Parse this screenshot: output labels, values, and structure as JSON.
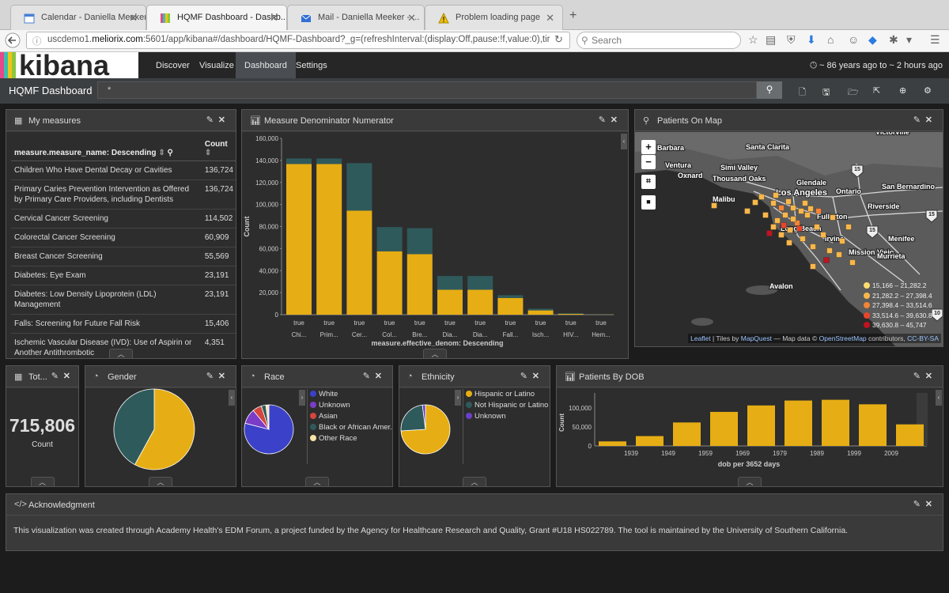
{
  "browser": {
    "tabs": [
      {
        "title": "Calendar - Daniella Meeker - ...",
        "icon": "calendar-icon"
      },
      {
        "title": "HQMF Dashboard - Dashb...",
        "icon": "kibana-icon",
        "active": true
      },
      {
        "title": "Mail - Daniella Meeker - ...",
        "icon": "mail-icon"
      },
      {
        "title": "Problem loading page",
        "icon": "warning-icon"
      }
    ],
    "url_prefix": "uscdemo1.",
    "url_domain": "meliorix.com",
    "url_rest": ":5601/app/kibana#/dashboard/HQMF-Dashboard?_g=(refreshInterval:(display:Off,pause:!f,value:0),tir",
    "search_placeholder": "Search"
  },
  "kibana": {
    "logo_text": "kibana",
    "nav": [
      "Discover",
      "Visualize",
      "Dashboard",
      "Settings"
    ],
    "active_nav": "Dashboard",
    "time_range": "~ 86 years ago to ~ 2 hours ago",
    "dashboard_title": "HQMF Dashboard",
    "query": "*"
  },
  "panels": {
    "my_measures": {
      "title": "My measures",
      "col_name": "measure.measure_name: Descending",
      "col_count": "Count",
      "rows": [
        {
          "name": "Children Who Have Dental Decay or Cavities",
          "count": "136,724"
        },
        {
          "name": "Primary Caries Prevention Intervention as Offered by Primary Care Providers, including Dentists",
          "count": "136,724"
        },
        {
          "name": "Cervical Cancer Screening",
          "count": "114,502"
        },
        {
          "name": "Colorectal Cancer Screening",
          "count": "60,909"
        },
        {
          "name": "Breast Cancer Screening",
          "count": "55,569"
        },
        {
          "name": "Diabetes: Eye Exam",
          "count": "23,191"
        },
        {
          "name": "Diabetes: Low Density Lipoprotein (LDL) Management",
          "count": "23,191"
        },
        {
          "name": "Falls: Screening for Future Fall Risk",
          "count": "15,406"
        },
        {
          "name": "Ischemic Vascular Disease (IVD): Use of Aspirin or Another Antithrombotic",
          "count": "4,351"
        }
      ]
    },
    "denom_numer": {
      "title": "Measure Denominator Numerator"
    },
    "map": {
      "title": "Patients On Map",
      "legend": [
        "15,166 – 21,282.2",
        "21,282.2 – 27,398.4",
        "27,398.4 – 33,514.6",
        "33,514.6 – 39,630.8",
        "39,630.8 – 45,747"
      ],
      "legend_colors": [
        "#fddc70",
        "#f9b74a",
        "#f48436",
        "#e8452b",
        "#c0131f"
      ],
      "cities": [
        "Santa Clarita",
        "Simi Valley",
        "Ventura",
        "Oxnard",
        "Thousand Oaks",
        "Glendale",
        "Los Angeles",
        "Ontario",
        "San Bernardino",
        "Malibu",
        "Fullerton",
        "Riverside",
        "Long Beach",
        "Irvine",
        "Menifee",
        "Mission Viejo",
        "Murrieta",
        "Avalon",
        "Barbara",
        "Victorville"
      ],
      "highways": [
        "15",
        "15",
        "15",
        "10"
      ],
      "attrib_leaflet": "Leaflet",
      "attrib_tiles": " | Tiles by ",
      "attrib_mapquest": "MapQuest",
      "attrib_data": " — Map data © ",
      "attrib_osm": "OpenStreetMap",
      "attrib_contrib": " contributors, ",
      "attrib_cc": "CC-BY-SA"
    },
    "total": {
      "title": "Tot...",
      "value": "715,806",
      "label": "Count"
    },
    "gender": {
      "title": "Gender"
    },
    "race": {
      "title": "Race",
      "legend": [
        "White",
        "Unknown",
        "Asian",
        "Black or African Amer...",
        "Other Race"
      ],
      "legend_colors": [
        "#3b41c8",
        "#7b3cc8",
        "#d4463e",
        "#2f5a5c",
        "#f7e4a6"
      ]
    },
    "ethnicity": {
      "title": "Ethnicity",
      "legend": [
        "Hispanic or Latino",
        "Not Hispanic or Latino",
        "Unknown"
      ],
      "legend_colors": [
        "#e6ae14",
        "#2f5a5c",
        "#6a3fc8"
      ]
    },
    "dob": {
      "title": "Patients By DOB"
    },
    "ack": {
      "title": "Acknowledgment",
      "text": "This visualization was created through Academy Health's EDM Forum, a project funded by the Agency for Healthcare Research and Quality, Grant #U18 HS022789. The tool is maintained by the University of Southern California."
    }
  },
  "colors": {
    "gold": "#e6ae14",
    "teal": "#2f5a5c"
  },
  "chart_data": [
    {
      "type": "bar",
      "title": "Measure Denominator Numerator",
      "xlabel": "measure.effective_denom: Descending",
      "ylabel": "Count",
      "categories": [
        "Chi...",
        "Prim...",
        "Cer...",
        "Col...",
        "Bre...",
        "Dia...",
        "Dia...",
        "Fall...",
        "Isch...",
        "HIV...",
        "Hem..."
      ],
      "cat_prefix": "true",
      "yticks": [
        "0",
        "20,000",
        "40,000",
        "60,000",
        "80,000",
        "100,000",
        "120,000",
        "140,000",
        "160,000"
      ],
      "ylim": [
        0,
        160000
      ],
      "stacked": true,
      "series": [
        {
          "values": [
            136724,
            136724,
            94500,
            57500,
            55000,
            22600,
            22600,
            15200,
            3900,
            700,
            100
          ]
        },
        {
          "values": [
            5000,
            5000,
            43000,
            22000,
            23500,
            12500,
            12500,
            2500,
            1500,
            600,
            50
          ]
        }
      ]
    },
    {
      "type": "pie",
      "title": "Gender",
      "slices": [
        {
          "value": 58,
          "color": "#e6ae14"
        },
        {
          "value": 42,
          "color": "#2f5a5c"
        }
      ]
    },
    {
      "type": "pie",
      "title": "Race",
      "slices": [
        {
          "label": "White",
          "value": 79,
          "color": "#3b41c8"
        },
        {
          "label": "Unknown",
          "value": 10,
          "color": "#7b3cc8"
        },
        {
          "label": "Asian",
          "value": 6,
          "color": "#d4463e"
        },
        {
          "label": "Black or African Amer...",
          "value": 3,
          "color": "#2f5a5c"
        },
        {
          "label": "Other Race",
          "value": 2,
          "color": "#f7e4a6"
        }
      ]
    },
    {
      "type": "pie",
      "title": "Ethnicity",
      "slices": [
        {
          "label": "Hispanic or Latino",
          "value": 74,
          "color": "#e6ae14"
        },
        {
          "label": "Not Hispanic or Latino",
          "value": 24,
          "color": "#2f5a5c"
        },
        {
          "label": "Unknown",
          "value": 2,
          "color": "#6a3fc8"
        }
      ]
    },
    {
      "type": "bar",
      "title": "Patients By DOB",
      "xlabel": "dob per 3652 days",
      "ylabel": "Count",
      "tick_labels": [
        "1939",
        "1949",
        "1959",
        "1969",
        "1979",
        "1989",
        "1999",
        "2009"
      ],
      "yticks": [
        "0",
        "50,000",
        "100,000"
      ],
      "ylim": [
        0,
        140000
      ],
      "values": [
        12000,
        26000,
        62000,
        90000,
        107000,
        120000,
        122000,
        110000,
        57000
      ]
    }
  ]
}
